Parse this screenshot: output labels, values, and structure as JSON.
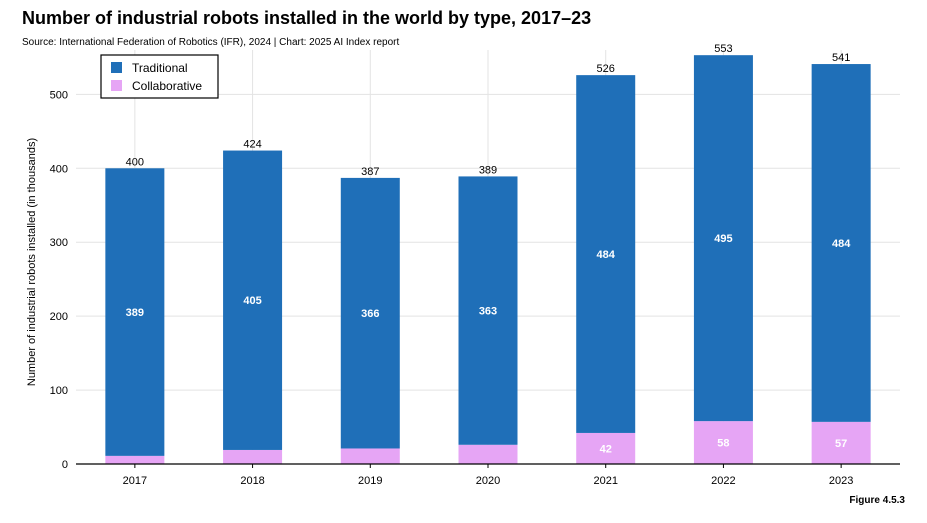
{
  "header": {
    "title": "Number of industrial robots installed in the world by type, 2017–23",
    "subtitle": "Source: International Federation of Robotics (IFR), 2024 | Chart: 2025 AI Index report"
  },
  "footer": {
    "figure_label": "Figure 4.5.3"
  },
  "colors": {
    "traditional": "#1f6fb8",
    "collaborative": "#e6a5f5",
    "grid": "#e3e3e3",
    "axis": "#000000"
  },
  "chart_data": {
    "type": "bar",
    "stacked": true,
    "title": "Number of industrial robots installed in the world by type, 2017–23",
    "xlabel": "",
    "ylabel": "Number of industrial robots installed (in thousands)",
    "ylim": [
      0,
      560
    ],
    "yticks": [
      0,
      100,
      200,
      300,
      400,
      500
    ],
    "grid": true,
    "legend_position": "top-left",
    "categories": [
      "2017",
      "2018",
      "2019",
      "2020",
      "2021",
      "2022",
      "2023"
    ],
    "series": [
      {
        "name": "Collaborative",
        "values": [
          11,
          19,
          21,
          26,
          42,
          58,
          57
        ],
        "labels": [
          "",
          "",
          "",
          "",
          "42",
          "58",
          "57"
        ]
      },
      {
        "name": "Traditional",
        "values": [
          389,
          405,
          366,
          363,
          484,
          495,
          484
        ],
        "labels": [
          "389",
          "405",
          "366",
          "363",
          "484",
          "495",
          "484"
        ]
      }
    ],
    "totals": [
      400,
      424,
      387,
      389,
      526,
      553,
      541
    ],
    "legend": [
      "Traditional",
      "Collaborative"
    ]
  }
}
